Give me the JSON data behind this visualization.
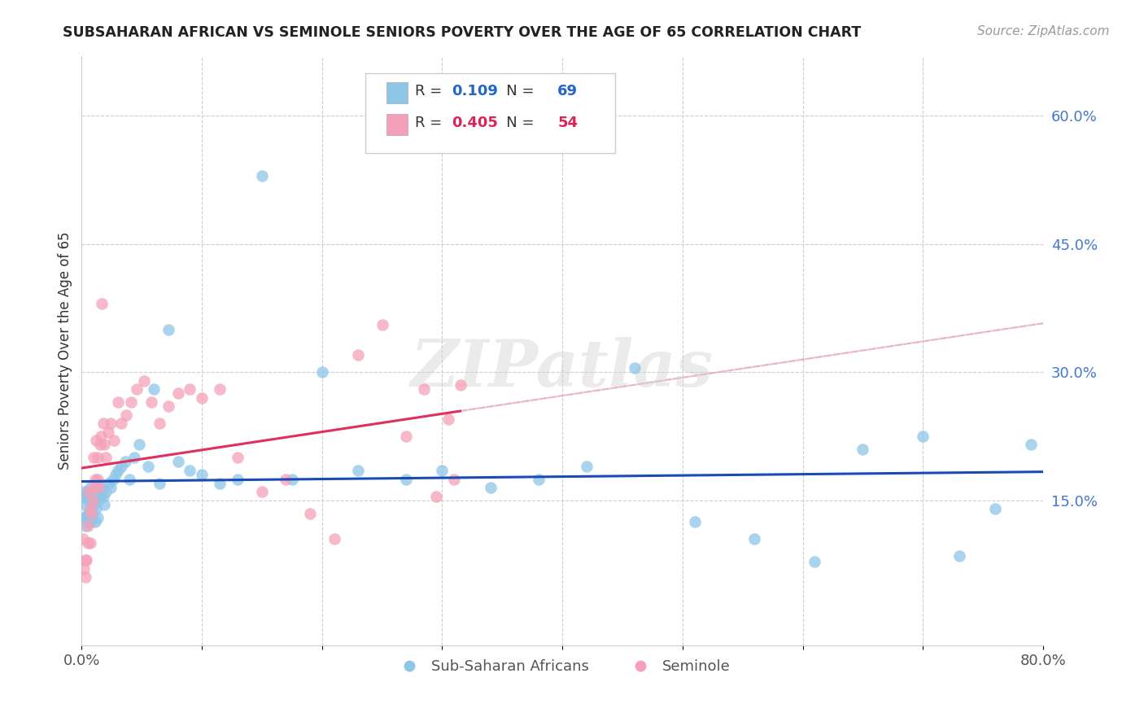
{
  "title": "SUBSAHARAN AFRICAN VS SEMINOLE SENIORS POVERTY OVER THE AGE OF 65 CORRELATION CHART",
  "source": "Source: ZipAtlas.com",
  "ylabel": "Seniors Poverty Over the Age of 65",
  "xlim": [
    0.0,
    0.8
  ],
  "ylim": [
    -0.02,
    0.67
  ],
  "blue_color": "#8ec6e8",
  "pink_color": "#f5a0b8",
  "blue_line_color": "#1a4bb5",
  "pink_line_color": "#e03060",
  "pink_dash_color": "#e8b0c0",
  "legend_blue_r_val": "0.109",
  "legend_blue_n_val": "69",
  "legend_pink_r_val": "0.405",
  "legend_pink_n_val": "54",
  "legend_label1": "Sub-Saharan Africans",
  "legend_label2": "Seminole",
  "watermark": "ZIPatlas",
  "legend_r_color": "#333333",
  "legend_val_blue_color": "#2266cc",
  "legend_val_pink_color": "#dd2255",
  "blue_scatter_x": [
    0.001,
    0.002,
    0.002,
    0.003,
    0.003,
    0.004,
    0.004,
    0.005,
    0.005,
    0.006,
    0.006,
    0.007,
    0.007,
    0.008,
    0.008,
    0.009,
    0.009,
    0.01,
    0.01,
    0.011,
    0.011,
    0.012,
    0.012,
    0.013,
    0.013,
    0.014,
    0.015,
    0.016,
    0.017,
    0.018,
    0.019,
    0.02,
    0.022,
    0.024,
    0.026,
    0.028,
    0.03,
    0.033,
    0.036,
    0.04,
    0.044,
    0.048,
    0.055,
    0.06,
    0.065,
    0.072,
    0.08,
    0.09,
    0.1,
    0.115,
    0.13,
    0.15,
    0.175,
    0.2,
    0.23,
    0.27,
    0.3,
    0.34,
    0.38,
    0.42,
    0.46,
    0.51,
    0.56,
    0.61,
    0.65,
    0.7,
    0.73,
    0.76,
    0.79
  ],
  "blue_scatter_y": [
    0.155,
    0.16,
    0.13,
    0.145,
    0.12,
    0.155,
    0.13,
    0.16,
    0.135,
    0.15,
    0.125,
    0.165,
    0.14,
    0.155,
    0.125,
    0.16,
    0.135,
    0.155,
    0.145,
    0.15,
    0.125,
    0.165,
    0.14,
    0.155,
    0.13,
    0.15,
    0.16,
    0.155,
    0.165,
    0.155,
    0.145,
    0.16,
    0.17,
    0.165,
    0.175,
    0.18,
    0.185,
    0.19,
    0.195,
    0.175,
    0.2,
    0.215,
    0.19,
    0.28,
    0.17,
    0.35,
    0.195,
    0.185,
    0.18,
    0.17,
    0.175,
    0.53,
    0.175,
    0.3,
    0.185,
    0.175,
    0.185,
    0.165,
    0.175,
    0.19,
    0.305,
    0.125,
    0.105,
    0.078,
    0.21,
    0.225,
    0.085,
    0.14,
    0.215
  ],
  "pink_scatter_x": [
    0.001,
    0.002,
    0.003,
    0.003,
    0.004,
    0.005,
    0.005,
    0.006,
    0.007,
    0.007,
    0.008,
    0.009,
    0.01,
    0.01,
    0.011,
    0.012,
    0.013,
    0.013,
    0.014,
    0.015,
    0.016,
    0.017,
    0.018,
    0.019,
    0.02,
    0.022,
    0.024,
    0.027,
    0.03,
    0.033,
    0.037,
    0.041,
    0.046,
    0.052,
    0.058,
    0.065,
    0.072,
    0.08,
    0.09,
    0.1,
    0.115,
    0.13,
    0.15,
    0.17,
    0.19,
    0.21,
    0.23,
    0.25,
    0.27,
    0.285,
    0.295,
    0.305,
    0.31,
    0.315
  ],
  "pink_scatter_y": [
    0.105,
    0.07,
    0.06,
    0.08,
    0.08,
    0.1,
    0.12,
    0.16,
    0.14,
    0.1,
    0.135,
    0.15,
    0.165,
    0.2,
    0.175,
    0.22,
    0.2,
    0.175,
    0.165,
    0.215,
    0.225,
    0.38,
    0.24,
    0.215,
    0.2,
    0.23,
    0.24,
    0.22,
    0.265,
    0.24,
    0.25,
    0.265,
    0.28,
    0.29,
    0.265,
    0.24,
    0.26,
    0.275,
    0.28,
    0.27,
    0.28,
    0.2,
    0.16,
    0.175,
    0.135,
    0.105,
    0.32,
    0.355,
    0.225,
    0.28,
    0.155,
    0.245,
    0.175,
    0.285
  ]
}
